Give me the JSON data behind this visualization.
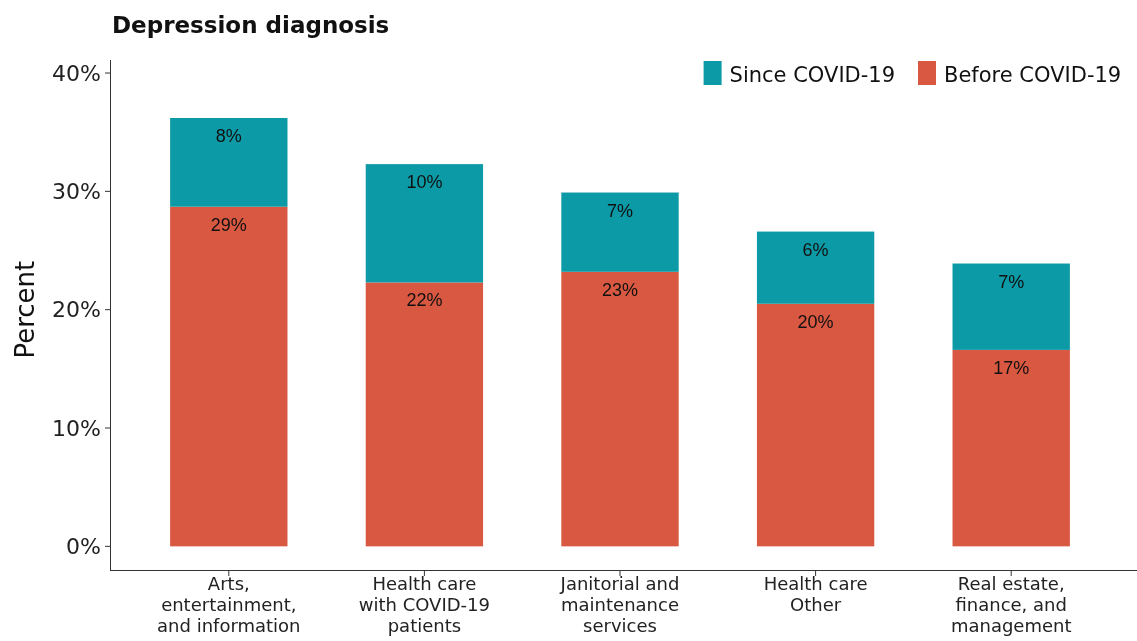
{
  "chart_data": {
    "type": "bar",
    "title": "Depression diagnosis",
    "ylabel": "Percent",
    "categories": [
      "Arts, entertainment, and information",
      "Health care with COVID-19 patients",
      "Janitorial and maintenance services",
      "Health care Other",
      "Real estate, finance, and management"
    ],
    "series": [
      {
        "name": "Before COVID-19",
        "color": "#d95841",
        "values": [
          28.7,
          22.3,
          23.2,
          20.5,
          16.6
        ],
        "value_labels": [
          "29%",
          "22%",
          "23%",
          "20%",
          "17%"
        ]
      },
      {
        "name": "Since COVID-19",
        "color": "#0c9aa6",
        "values": [
          7.5,
          10.0,
          6.7,
          6.1,
          7.3
        ],
        "value_labels": [
          "8%",
          "10%",
          "7%",
          "6%",
          "7%"
        ]
      }
    ],
    "stacked": true,
    "ylim": [
      -2,
      41.1
    ],
    "yticks": [
      {
        "value": 0,
        "label": "0%"
      },
      {
        "value": 10,
        "label": "10%"
      },
      {
        "value": 20,
        "label": "20%"
      },
      {
        "value": 30,
        "label": "30%"
      },
      {
        "value": 40,
        "label": "40%"
      }
    ],
    "grid": false,
    "legend": "top right"
  }
}
